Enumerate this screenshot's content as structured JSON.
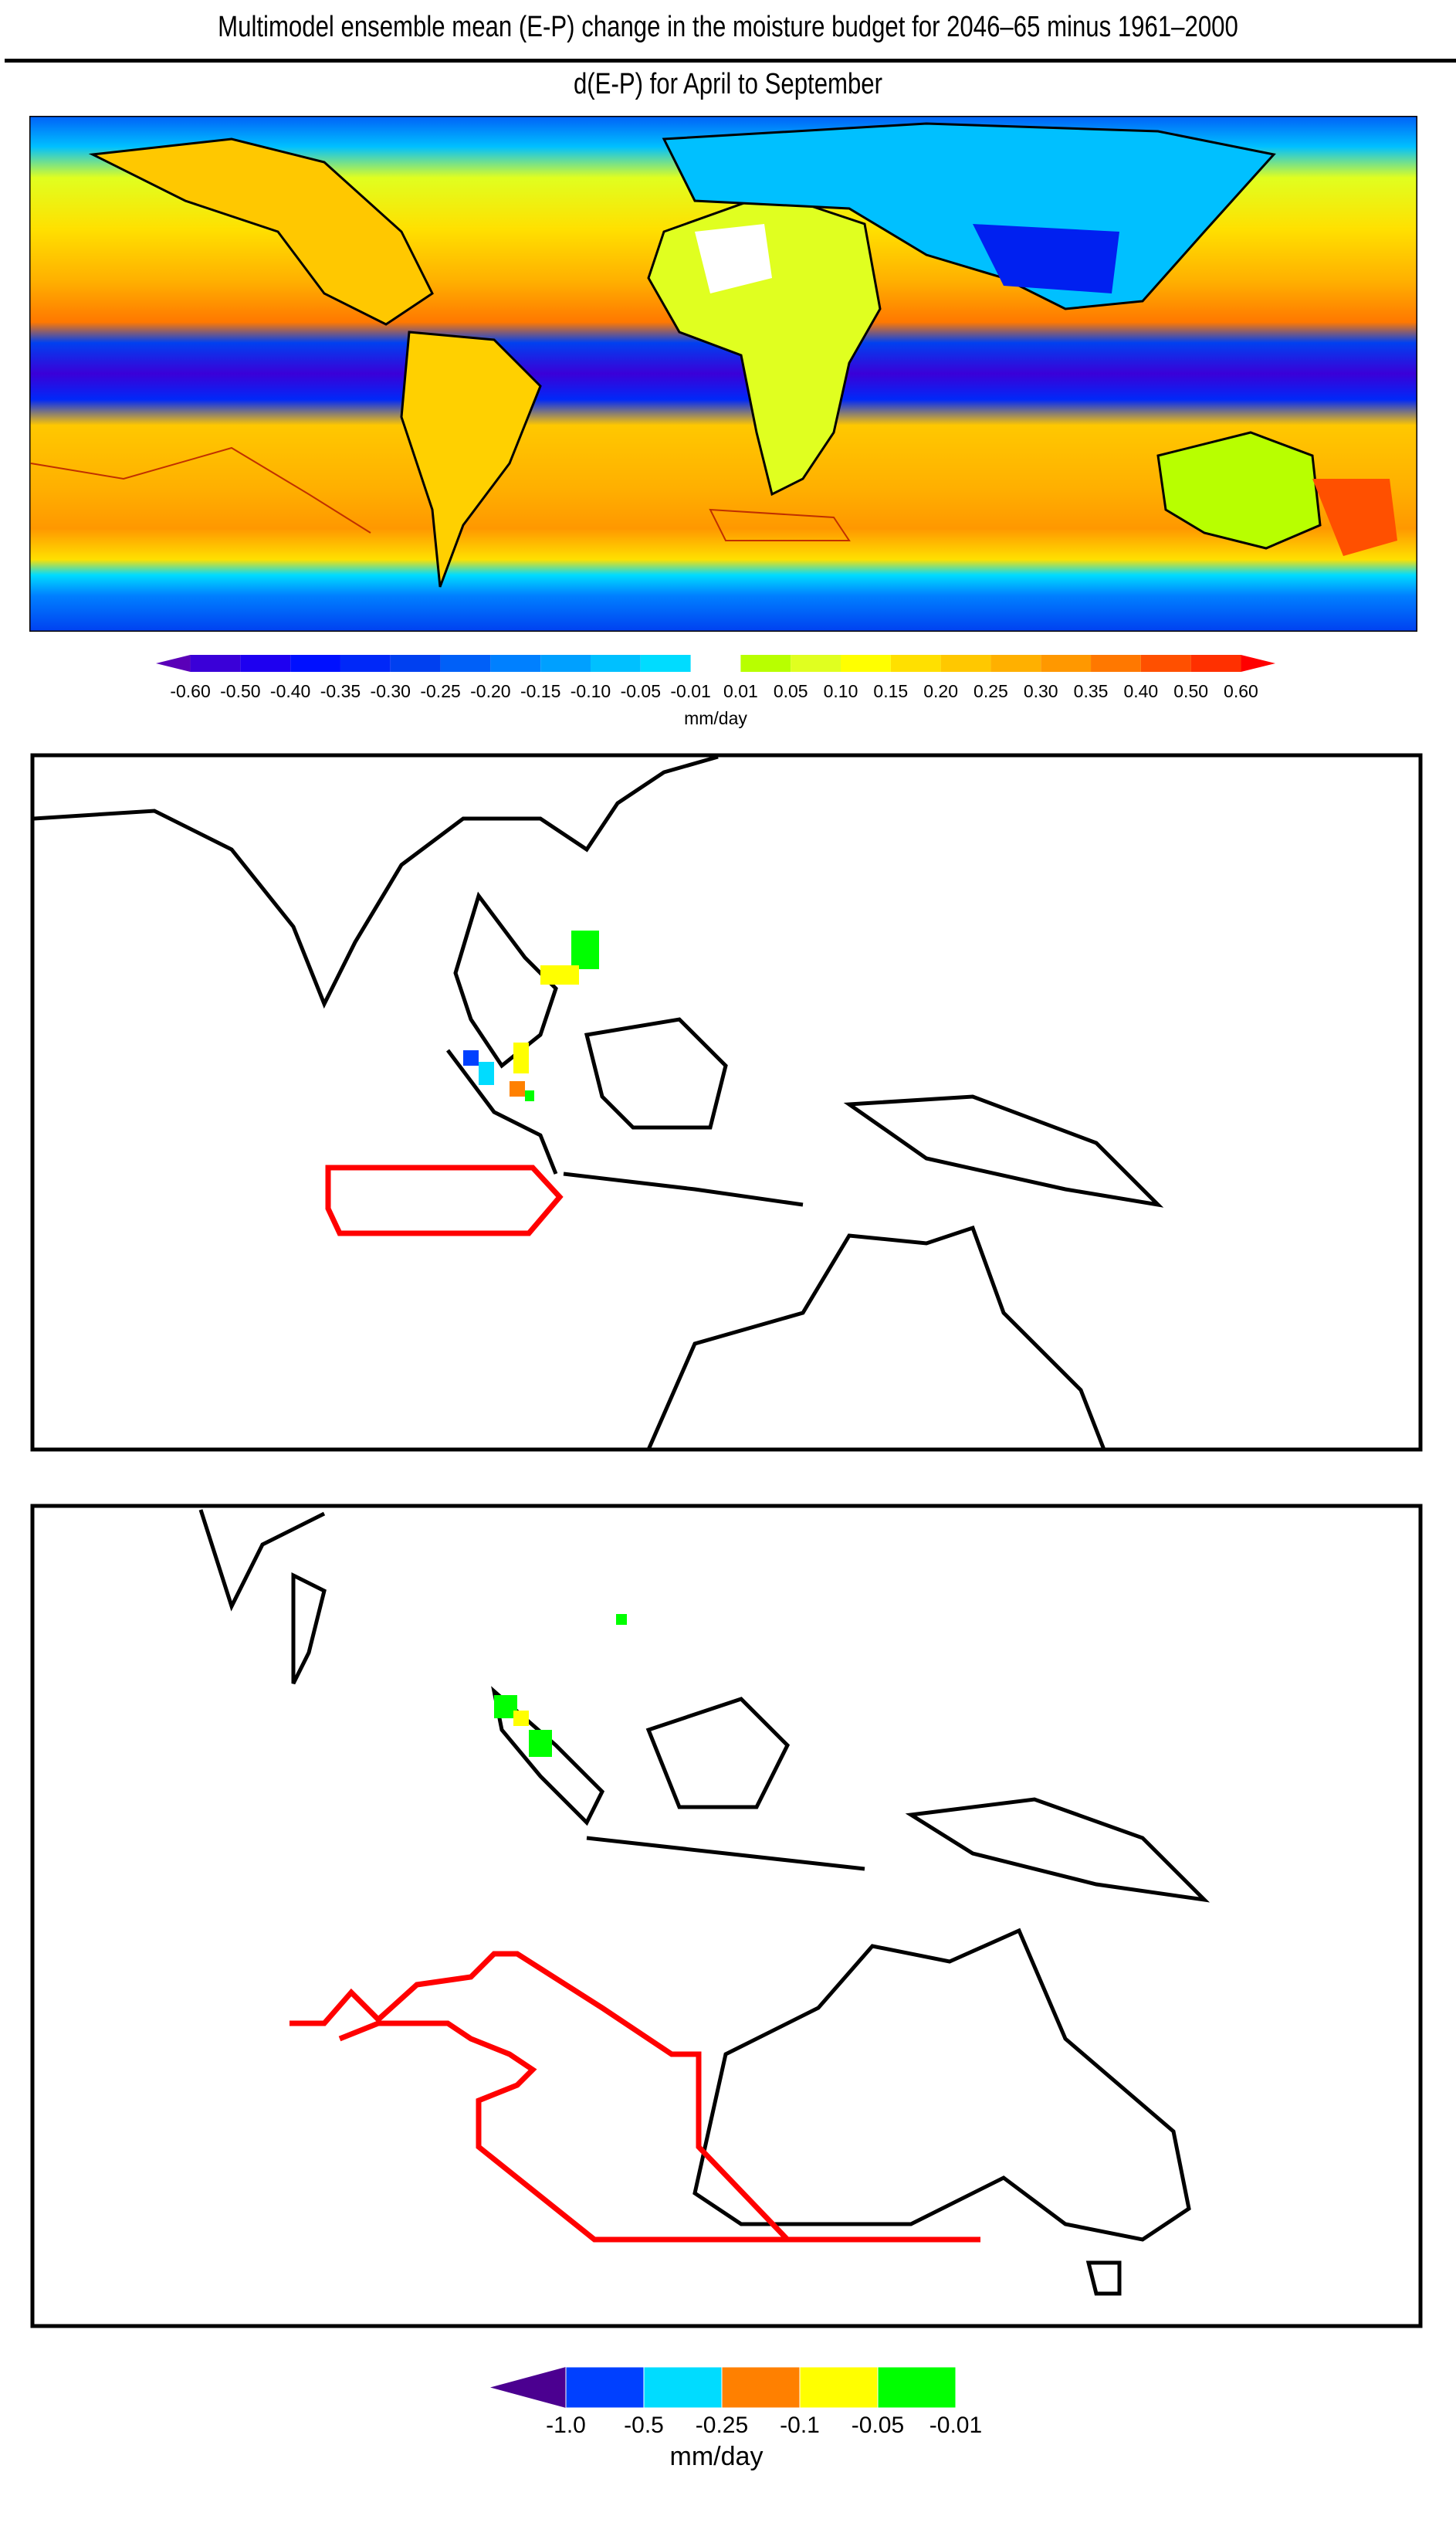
{
  "title": "Multimodel ensemble mean (E-P) change in the moisture budget for 2046–65 minus 1961–2000",
  "subtitle": "d(E-P) for April to September",
  "chart_data": [
    {
      "type": "heatmap",
      "panel": "global map",
      "title": "d(E-P) for April to September",
      "colorbar": {
        "labels": [
          "-0.60",
          "-0.50",
          "-0.40",
          "-0.35",
          "-0.30",
          "-0.25",
          "-0.20",
          "-0.15",
          "-0.10",
          "-0.05",
          "-0.01",
          "0.01",
          "0.05",
          "0.10",
          "0.15",
          "0.20",
          "0.25",
          "0.30",
          "0.35",
          "0.40",
          "0.50",
          "0.60"
        ],
        "negative_colors": [
          "#3a00d8",
          "#1e00f0",
          "#0010ff",
          "#0028f8",
          "#0040f0",
          "#0060f8",
          "#0080ff",
          "#00a0ff",
          "#00c0ff",
          "#00dcff"
        ],
        "positive_colors": [
          "#b8ff00",
          "#e0ff20",
          "#ffff00",
          "#ffe000",
          "#ffc800",
          "#ffb000",
          "#ff9800",
          "#ff7800",
          "#ff5000",
          "#ff3000"
        ],
        "under_color": "#5a00b8",
        "over_color": "#ff0000",
        "unit": "mm/day"
      }
    },
    {
      "type": "heatmap",
      "panel": "maritime continent map",
      "colorbar": {
        "labels": [
          "-1.0",
          "-0.5",
          "-0.25",
          "-0.1",
          "-0.05",
          "-0.01"
        ],
        "colors": [
          "#0040ff",
          "#00dcff",
          "#ff8000",
          "#ffff00",
          "#00ff00"
        ],
        "under_color": "#4b0090",
        "unit": "mm/day"
      },
      "contour_color": "#ff0000"
    },
    {
      "type": "heatmap",
      "panel": "maritime continent and australia map",
      "contour_color": "#ff0000"
    }
  ]
}
